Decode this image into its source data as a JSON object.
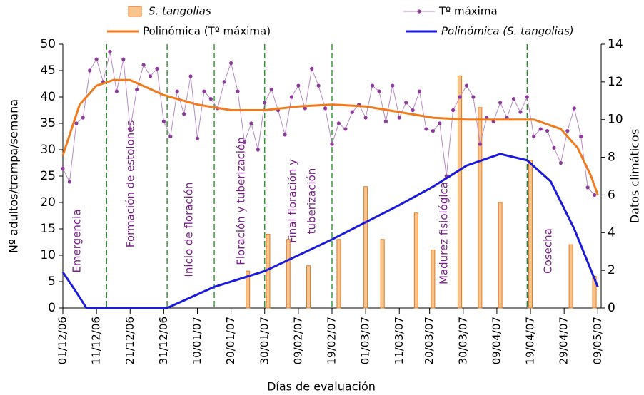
{
  "chart_data": {
    "type": "combo",
    "x_label": "Días de evaluación",
    "y_label": "Nº adultos/trampa/semana",
    "y2_label": "Datos climáticos",
    "xlim": [
      0,
      160
    ],
    "xticks": [
      {
        "value": 0,
        "label": "01/12/06"
      },
      {
        "value": 10,
        "label": "11/12/06"
      },
      {
        "value": 20,
        "label": "21/12/06"
      },
      {
        "value": 30,
        "label": "31/12/06"
      },
      {
        "value": 40,
        "label": "10/01/07"
      },
      {
        "value": 50,
        "label": "20/01/07"
      },
      {
        "value": 60,
        "label": "30/01/07"
      },
      {
        "value": 70,
        "label": "09/02/07"
      },
      {
        "value": 80,
        "label": "19/02/07"
      },
      {
        "value": 90,
        "label": "01/03/07"
      },
      {
        "value": 100,
        "label": "11/03/07"
      },
      {
        "value": 109,
        "label": "20/03/07"
      },
      {
        "value": 119,
        "label": "30/03/07"
      },
      {
        "value": 129,
        "label": "09/04/07"
      },
      {
        "value": 139,
        "label": "19/04/07"
      },
      {
        "value": 149,
        "label": "29/04/07"
      },
      {
        "value": 159,
        "label": "09/05/07"
      }
    ],
    "ylim": [
      0,
      50
    ],
    "yticks": [
      0,
      5,
      10,
      15,
      20,
      25,
      30,
      35,
      40,
      45,
      50
    ],
    "y2lim": [
      0,
      14
    ],
    "y2ticks": [
      0,
      2,
      4,
      6,
      8,
      10,
      12,
      14
    ],
    "phase_lines": [
      13,
      31,
      45,
      60,
      80,
      138
    ],
    "stages": [
      "Emergencia",
      "Formación de estolones",
      "Inicio de floración",
      "Floración y tuberización",
      "Final floración y",
      "tuberización",
      "Madurez fisiológica",
      "Cosecha"
    ],
    "series": [
      {
        "name": "S. tangolias",
        "type": "bar",
        "color": "#f9c58f",
        "x": [
          55,
          61,
          67,
          73,
          82,
          90,
          95,
          105,
          110,
          118,
          124,
          130,
          139,
          151,
          158
        ],
        "values": [
          7,
          14,
          13,
          8,
          13,
          23,
          13,
          18,
          11,
          44,
          38,
          20,
          28,
          12,
          6
        ]
      },
      {
        "name": "Tº máxima",
        "type": "dots",
        "axis": "y2",
        "color": "#8e3a9c",
        "x": [
          0,
          2,
          4,
          6,
          8,
          10,
          12,
          14,
          16,
          18,
          20,
          22,
          24,
          26,
          28,
          30,
          32,
          34,
          36,
          38,
          40,
          42,
          44,
          46,
          48,
          50,
          52,
          54,
          56,
          58,
          60,
          62,
          64,
          66,
          68,
          70,
          72,
          74,
          76,
          78,
          80,
          82,
          84,
          86,
          88,
          90,
          92,
          94,
          96,
          98,
          100,
          102,
          104,
          106,
          108,
          110,
          112,
          114,
          116,
          118,
          120,
          122,
          124,
          126,
          128,
          130,
          132,
          134,
          136,
          138,
          140,
          142,
          144,
          146,
          148,
          150,
          152,
          154,
          156,
          158
        ],
        "values": [
          7.4,
          6.7,
          9.8,
          10.1,
          12.6,
          13.2,
          12.0,
          13.6,
          11.5,
          13.2,
          9.5,
          11.6,
          12.9,
          12.3,
          12.7,
          9.9,
          9.1,
          11.5,
          10.3,
          12.3,
          9.0,
          11.5,
          11.1,
          10.6,
          12.0,
          13.0,
          11.5,
          8.8,
          9.8,
          8.4,
          10.9,
          11.6,
          10.5,
          9.2,
          11.2,
          11.8,
          10.6,
          12.7,
          11.8,
          10.6,
          8.7,
          9.8,
          9.5,
          10.4,
          10.8,
          10.1,
          11.8,
          11.5,
          9.9,
          11.8,
          10.1,
          10.9,
          10.5,
          11.5,
          9.5,
          9.4,
          9.8,
          7.0,
          10.5,
          11.2,
          11.8,
          11.2,
          8.7,
          10.1,
          9.9,
          10.9,
          10.1,
          11.1,
          10.4,
          11.2,
          9.1,
          9.5,
          9.4,
          8.5,
          7.7,
          9.4,
          10.6,
          9.1,
          6.4,
          6.0
        ]
      },
      {
        "name": "Polinómica (Tº máxima)",
        "type": "line",
        "axis": "y2",
        "color": "#f07a1e",
        "x": [
          0,
          5,
          10,
          15,
          20,
          30,
          40,
          50,
          60,
          70,
          80,
          90,
          100,
          110,
          120,
          130,
          140,
          148,
          153,
          157,
          159
        ],
        "values": [
          8.1,
          10.8,
          11.8,
          12.1,
          12.1,
          11.3,
          10.8,
          10.5,
          10.5,
          10.7,
          10.8,
          10.7,
          10.4,
          10.1,
          10.0,
          10.0,
          10.0,
          9.5,
          8.5,
          7.0,
          6.0
        ]
      },
      {
        "name": "Polinómica (S. tangolias)",
        "type": "line",
        "color": "#1a1adc",
        "x": [
          0,
          4,
          7,
          31,
          45,
          60,
          80,
          100,
          110,
          120,
          130,
          138,
          145,
          152,
          159
        ],
        "values": [
          6.8,
          3,
          0,
          0,
          4,
          7,
          13,
          19.5,
          23,
          27,
          29.2,
          28,
          24,
          15,
          4
        ]
      }
    ]
  }
}
